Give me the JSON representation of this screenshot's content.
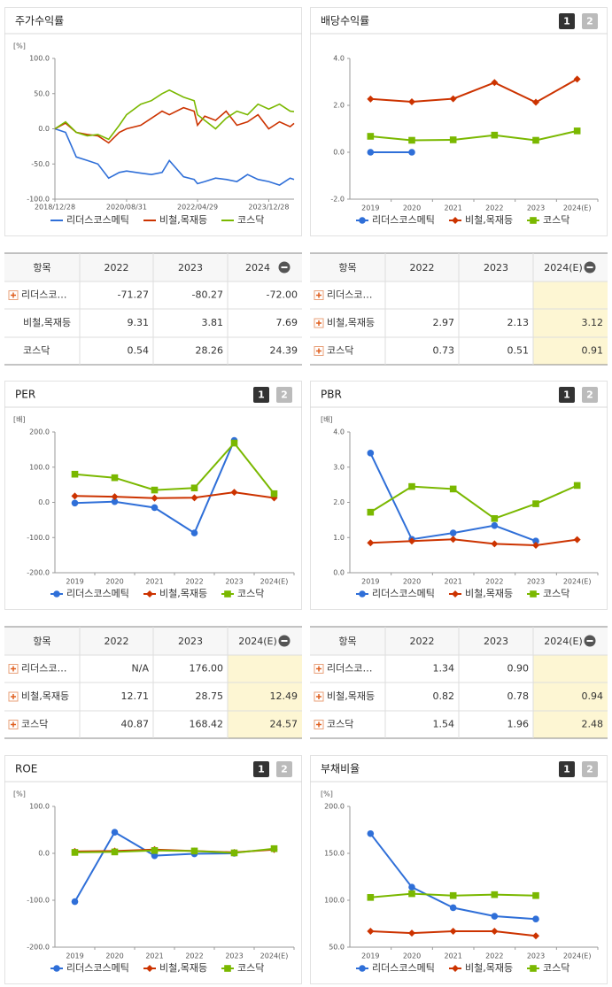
{
  "chart_data": [
    {
      "type": "line",
      "title": "주가수익률",
      "unit": "[%]",
      "x": [
        "2018/12/28",
        "2019/03/29",
        "2019/06/28",
        "2019/09/30",
        "2019/12/30",
        "2020/03/31",
        "2020/06/30",
        "2020/08/31",
        "2020/12/30",
        "2021/03/31",
        "2021/06/30",
        "2021/08/31",
        "2021/12/30",
        "2022/03/31",
        "2022/04/29",
        "2022/06/30",
        "2022/09/30",
        "2022/12/29",
        "2023/03/31",
        "2023/06/30",
        "2023/09/27",
        "2023/12/28",
        "2024/03/29",
        "2024/06/28",
        "2024/07/31"
      ],
      "xlim": [
        "2018/12/28",
        "2024/07/31"
      ],
      "xticks": [
        "2018/12/28",
        "2020/08/31",
        "2022/04/29",
        "2023/12/28"
      ],
      "ylim": [
        -100,
        100
      ],
      "yticks": [
        {
          "value": 100,
          "label": "100.0"
        },
        {
          "value": 50,
          "label": "50.0"
        },
        {
          "value": 0,
          "label": "0.0"
        },
        {
          "value": -50,
          "label": "-50.0"
        },
        {
          "value": -100,
          "label": "-100.0"
        }
      ],
      "series": [
        {
          "name": "리더스코스메틱",
          "color": "#2f6fd8",
          "values": [
            0,
            -5,
            -40,
            -45,
            -50,
            -70,
            -62,
            -60,
            -63,
            -65,
            -62,
            -45,
            -68,
            -72,
            -78,
            -75,
            -70,
            -72,
            -75,
            -65,
            -72,
            -75,
            -80,
            -70,
            -72
          ]
        },
        {
          "name": "비철,목재등",
          "color": "#cc3300",
          "values": [
            0,
            8,
            -5,
            -8,
            -10,
            -20,
            -5,
            0,
            5,
            15,
            25,
            20,
            30,
            25,
            5,
            18,
            12,
            25,
            5,
            10,
            20,
            0,
            10,
            3,
            7.69
          ]
        },
        {
          "name": "코스닥",
          "color": "#7ab800",
          "values": [
            0,
            10,
            -5,
            -10,
            -8,
            -15,
            5,
            20,
            35,
            40,
            50,
            55,
            45,
            40,
            20,
            12,
            0,
            15,
            25,
            20,
            35,
            28,
            35,
            25,
            24.39
          ]
        }
      ]
    },
    {
      "type": "line",
      "title": "배당수익률",
      "pages": [
        "1",
        "2"
      ],
      "categories": [
        "2019",
        "2020",
        "2021",
        "2022",
        "2023",
        "2024(E)"
      ],
      "ylim": [
        -2,
        4
      ],
      "yticks": [
        {
          "value": 4,
          "label": "4.0"
        },
        {
          "value": 2,
          "label": "2.0"
        },
        {
          "value": 0,
          "label": "0.0"
        },
        {
          "value": -2,
          "label": "-2.0"
        }
      ],
      "series": [
        {
          "name": "리더스코스메틱",
          "color": "#2f6fd8",
          "marker": "circle",
          "values": [
            0,
            0,
            null,
            null,
            null,
            null
          ]
        },
        {
          "name": "비철,목재등",
          "color": "#cc3300",
          "marker": "diamond",
          "values": [
            2.27,
            2.15,
            2.28,
            2.97,
            2.13,
            3.12
          ]
        },
        {
          "name": "코스닥",
          "color": "#7ab800",
          "marker": "square",
          "values": [
            0.68,
            0.51,
            0.53,
            0.73,
            0.51,
            0.91
          ]
        }
      ]
    },
    {
      "type": "line",
      "title": "PER",
      "pages": [
        "1",
        "2"
      ],
      "unit": "[배]",
      "categories": [
        "2019",
        "2020",
        "2021",
        "2022",
        "2023",
        "2024(E)"
      ],
      "ylim": [
        -200,
        200
      ],
      "yticks": [
        {
          "value": 200,
          "label": "200.0"
        },
        {
          "value": 100,
          "label": "100.0"
        },
        {
          "value": 0,
          "label": "0.0"
        },
        {
          "value": -100,
          "label": "-100.0"
        },
        {
          "value": -200,
          "label": "-200.0"
        }
      ],
      "series": [
        {
          "name": "리더스코스메틱",
          "color": "#2f6fd8",
          "marker": "circle",
          "values": [
            -2,
            2,
            -15,
            -87,
            176,
            null
          ]
        },
        {
          "name": "비철,목재등",
          "color": "#cc3300",
          "marker": "diamond",
          "values": [
            18,
            16,
            12,
            13,
            28.75,
            12.49
          ]
        },
        {
          "name": "코스닥",
          "color": "#7ab800",
          "marker": "square",
          "values": [
            80,
            70,
            35,
            40.87,
            168.42,
            24.57
          ]
        }
      ]
    },
    {
      "type": "line",
      "title": "PBR",
      "pages": [
        "1",
        "2"
      ],
      "unit": "[배]",
      "categories": [
        "2019",
        "2020",
        "2021",
        "2022",
        "2023",
        "2024(E)"
      ],
      "ylim": [
        0,
        4
      ],
      "yticks": [
        {
          "value": 4,
          "label": "4.0"
        },
        {
          "value": 3,
          "label": "3.0"
        },
        {
          "value": 2,
          "label": "2.0"
        },
        {
          "value": 1,
          "label": "1.0"
        },
        {
          "value": 0,
          "label": "0.0"
        }
      ],
      "series": [
        {
          "name": "리더스코스메틱",
          "color": "#2f6fd8",
          "marker": "circle",
          "values": [
            3.4,
            0.95,
            1.13,
            1.34,
            0.9,
            null
          ]
        },
        {
          "name": "비철,목재등",
          "color": "#cc3300",
          "marker": "diamond",
          "values": [
            0.85,
            0.9,
            0.95,
            0.82,
            0.78,
            0.94
          ]
        },
        {
          "name": "코스닥",
          "color": "#7ab800",
          "marker": "square",
          "values": [
            1.72,
            2.45,
            2.38,
            1.54,
            1.96,
            2.48
          ]
        }
      ]
    },
    {
      "type": "line",
      "title": "ROE",
      "pages": [
        "1",
        "2"
      ],
      "unit": "[%]",
      "categories": [
        "2019",
        "2020",
        "2021",
        "2022",
        "2023",
        "2024(E)"
      ],
      "ylim": [
        -200,
        100
      ],
      "yticks": [
        {
          "value": 100,
          "label": "100.0"
        },
        {
          "value": 0,
          "label": "0.0"
        },
        {
          "value": -100,
          "label": "-100.0"
        },
        {
          "value": -200,
          "label": "-200.0"
        }
      ],
      "series": [
        {
          "name": "리더스코스메틱",
          "color": "#2f6fd8",
          "marker": "circle",
          "values": [
            -103,
            45,
            -5,
            -1,
            0,
            null
          ]
        },
        {
          "name": "비철,목재등",
          "color": "#cc3300",
          "marker": "diamond",
          "values": [
            4,
            5,
            8,
            5,
            2,
            8
          ]
        },
        {
          "name": "코스닥",
          "color": "#7ab800",
          "marker": "square",
          "values": [
            2,
            3,
            6,
            5,
            1,
            10
          ]
        }
      ]
    },
    {
      "type": "line",
      "title": "부채비율",
      "pages": [
        "1",
        "2"
      ],
      "unit": "[%]",
      "categories": [
        "2019",
        "2020",
        "2021",
        "2022",
        "2023",
        "2024(E)"
      ],
      "ylim": [
        50,
        200
      ],
      "yticks": [
        {
          "value": 200,
          "label": "200.0"
        },
        {
          "value": 150,
          "label": "150.0"
        },
        {
          "value": 100,
          "label": "100.0"
        },
        {
          "value": 50,
          "label": "50.0"
        }
      ],
      "series": [
        {
          "name": "리더스코스메틱",
          "color": "#2f6fd8",
          "marker": "circle",
          "values": [
            171,
            114,
            92,
            83,
            80,
            null
          ]
        },
        {
          "name": "비철,목재등",
          "color": "#cc3300",
          "marker": "diamond",
          "values": [
            67,
            65,
            67,
            67,
            62,
            null
          ]
        },
        {
          "name": "코스닥",
          "color": "#7ab800",
          "marker": "square",
          "values": [
            103,
            107,
            105,
            106,
            105,
            null
          ]
        }
      ]
    }
  ],
  "tables": [
    {
      "header": [
        "항목",
        "2022",
        "2023",
        "2024"
      ],
      "highlight_last": false,
      "expandable": [
        true,
        false,
        false
      ],
      "rows": [
        [
          "리더스코…",
          "-71.27",
          "-80.27",
          "-72.00"
        ],
        [
          "비철,목재등",
          "9.31",
          "3.81",
          "7.69"
        ],
        [
          "코스닥",
          "0.54",
          "28.26",
          "24.39"
        ]
      ]
    },
    {
      "header": [
        "항목",
        "2022",
        "2023",
        "2024(E)"
      ],
      "highlight_last": true,
      "expandable": [
        true,
        true,
        true
      ],
      "rows": [
        [
          "리더스코…",
          null,
          null,
          null
        ],
        [
          "비철,목재등",
          "2.97",
          "2.13",
          "3.12"
        ],
        [
          "코스닥",
          "0.73",
          "0.51",
          "0.91"
        ]
      ]
    },
    {
      "header": [
        "항목",
        "2022",
        "2023",
        "2024(E)"
      ],
      "highlight_last": true,
      "expandable": [
        true,
        true,
        true
      ],
      "rows": [
        [
          "리더스코…",
          "N/A",
          "176.00",
          null
        ],
        [
          "비철,목재등",
          "12.71",
          "28.75",
          "12.49"
        ],
        [
          "코스닥",
          "40.87",
          "168.42",
          "24.57"
        ]
      ]
    },
    {
      "header": [
        "항목",
        "2022",
        "2023",
        "2024(E)"
      ],
      "highlight_last": true,
      "expandable": [
        true,
        true,
        true
      ],
      "rows": [
        [
          "리더스코…",
          "1.34",
          "0.90",
          null
        ],
        [
          "비철,목재등",
          "0.82",
          "0.78",
          "0.94"
        ],
        [
          "코스닥",
          "1.54",
          "1.96",
          "2.48"
        ]
      ]
    }
  ]
}
